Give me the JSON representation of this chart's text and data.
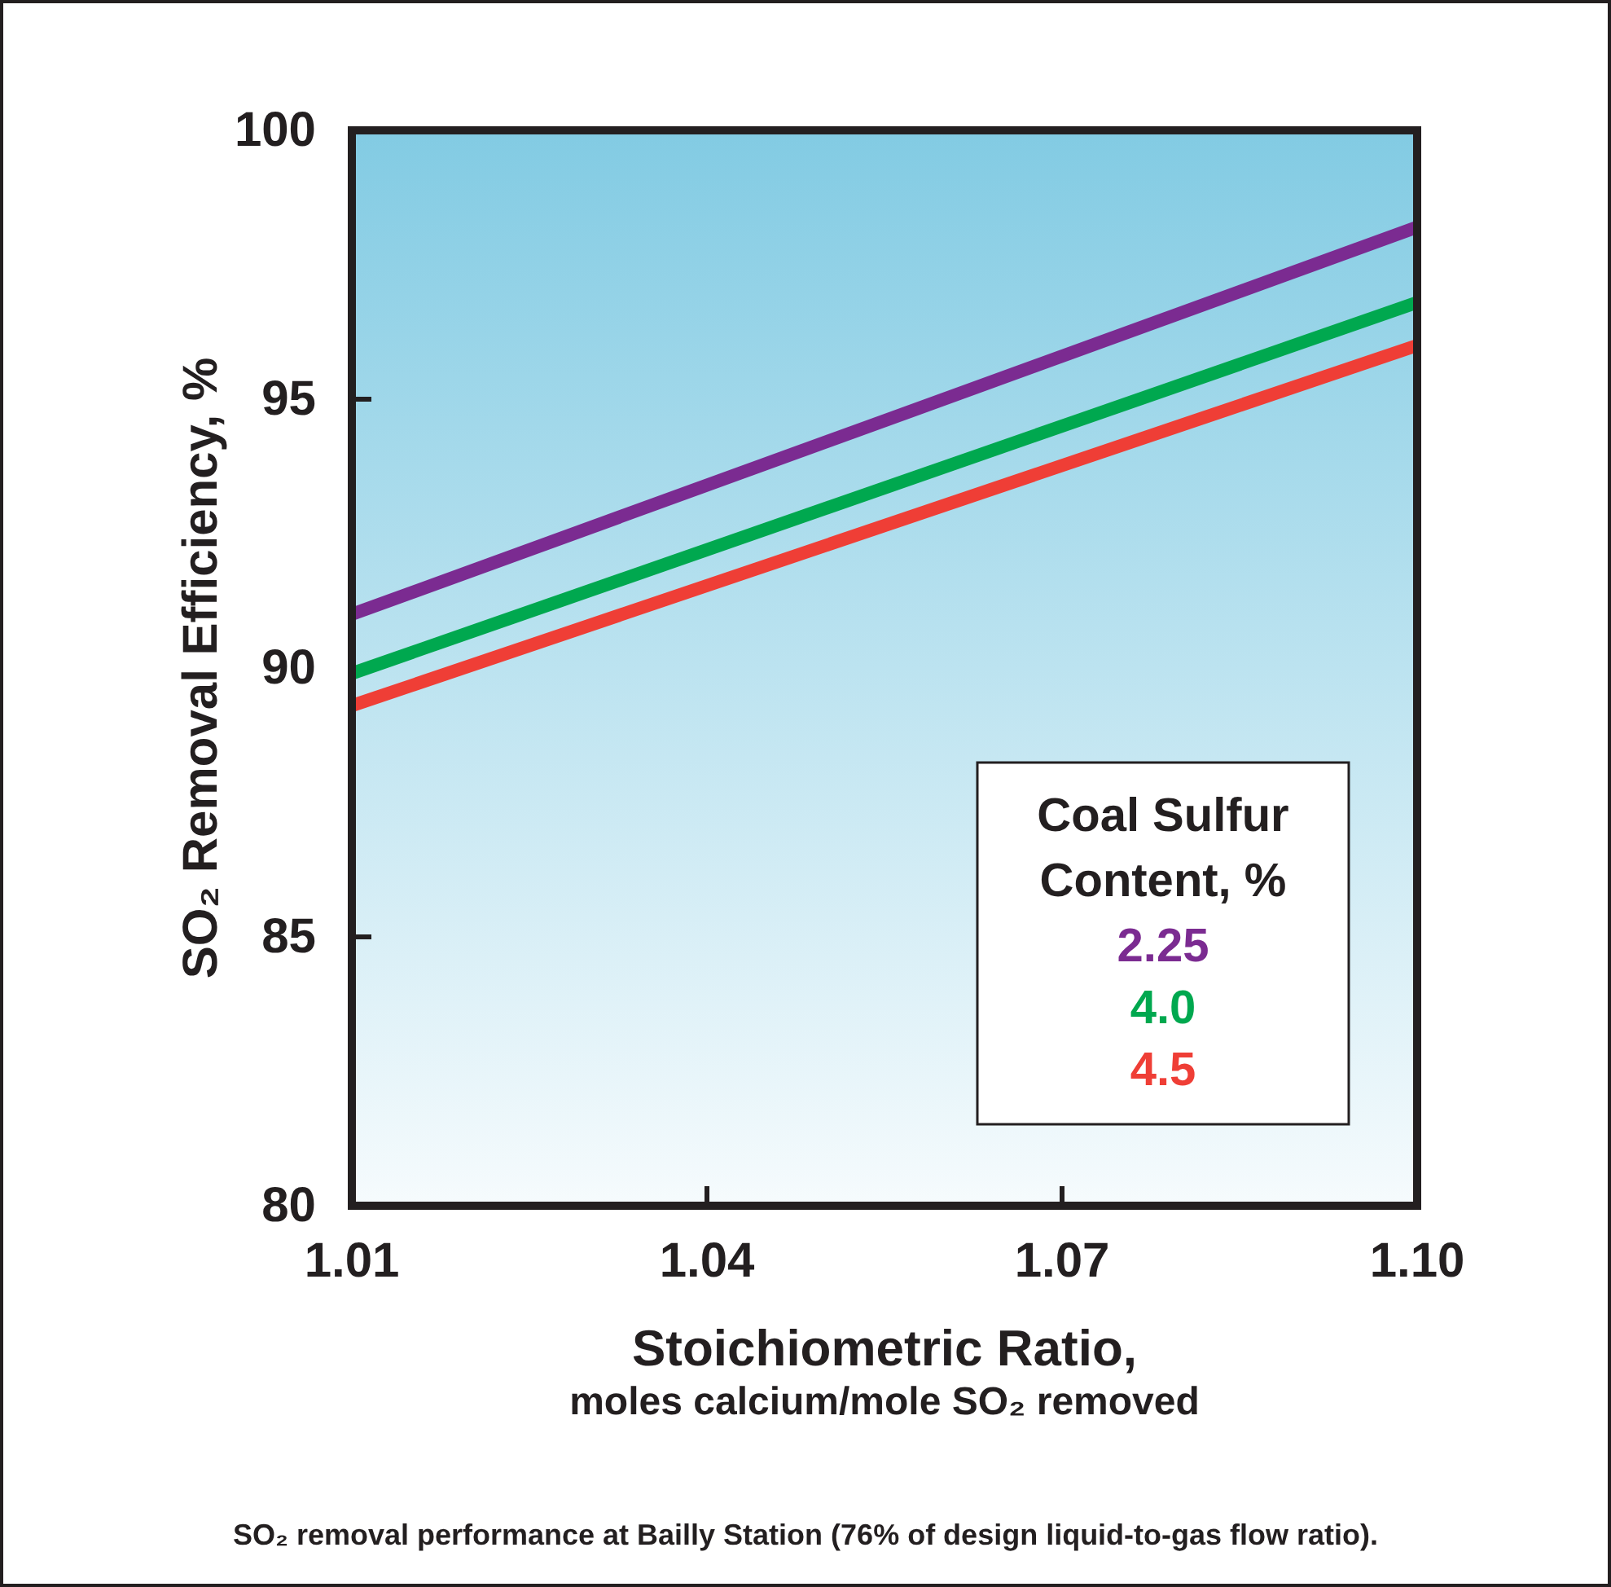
{
  "chart_data": {
    "type": "line",
    "xlabel": "Stoichiometric Ratio,\nmoles calcium/mole SO₂ removed",
    "ylabel": "SO₂ Removal Efficiency, %",
    "legend_title": "Coal Sulfur Content, %",
    "legend": "bottom right",
    "grid": false,
    "line_style": "solid",
    "marker": "none",
    "x": [
      1.01,
      1.1
    ],
    "xlim": [
      1.01,
      1.1
    ],
    "xticks": [
      1.01,
      1.04,
      1.07,
      {
        "value": 1.1,
        "label": "1.10"
      }
    ],
    "ylim": [
      80,
      100
    ],
    "yticks": [
      80,
      85,
      90,
      95,
      100
    ],
    "series": [
      {
        "name": "2.25",
        "color": "#7b2b91",
        "values": [
          91.0,
          98.2
        ]
      },
      {
        "name": "4.0",
        "color": "#00a84f",
        "values": [
          89.9,
          96.8
        ]
      },
      {
        "name": "4.5",
        "color": "#ef3e36",
        "values": [
          89.3,
          96.0
        ]
      }
    ],
    "annotations": [
      "SO₂ removal performance at Bailly Station (76% of design liquid-to-gas flow ratio)."
    ]
  }
}
